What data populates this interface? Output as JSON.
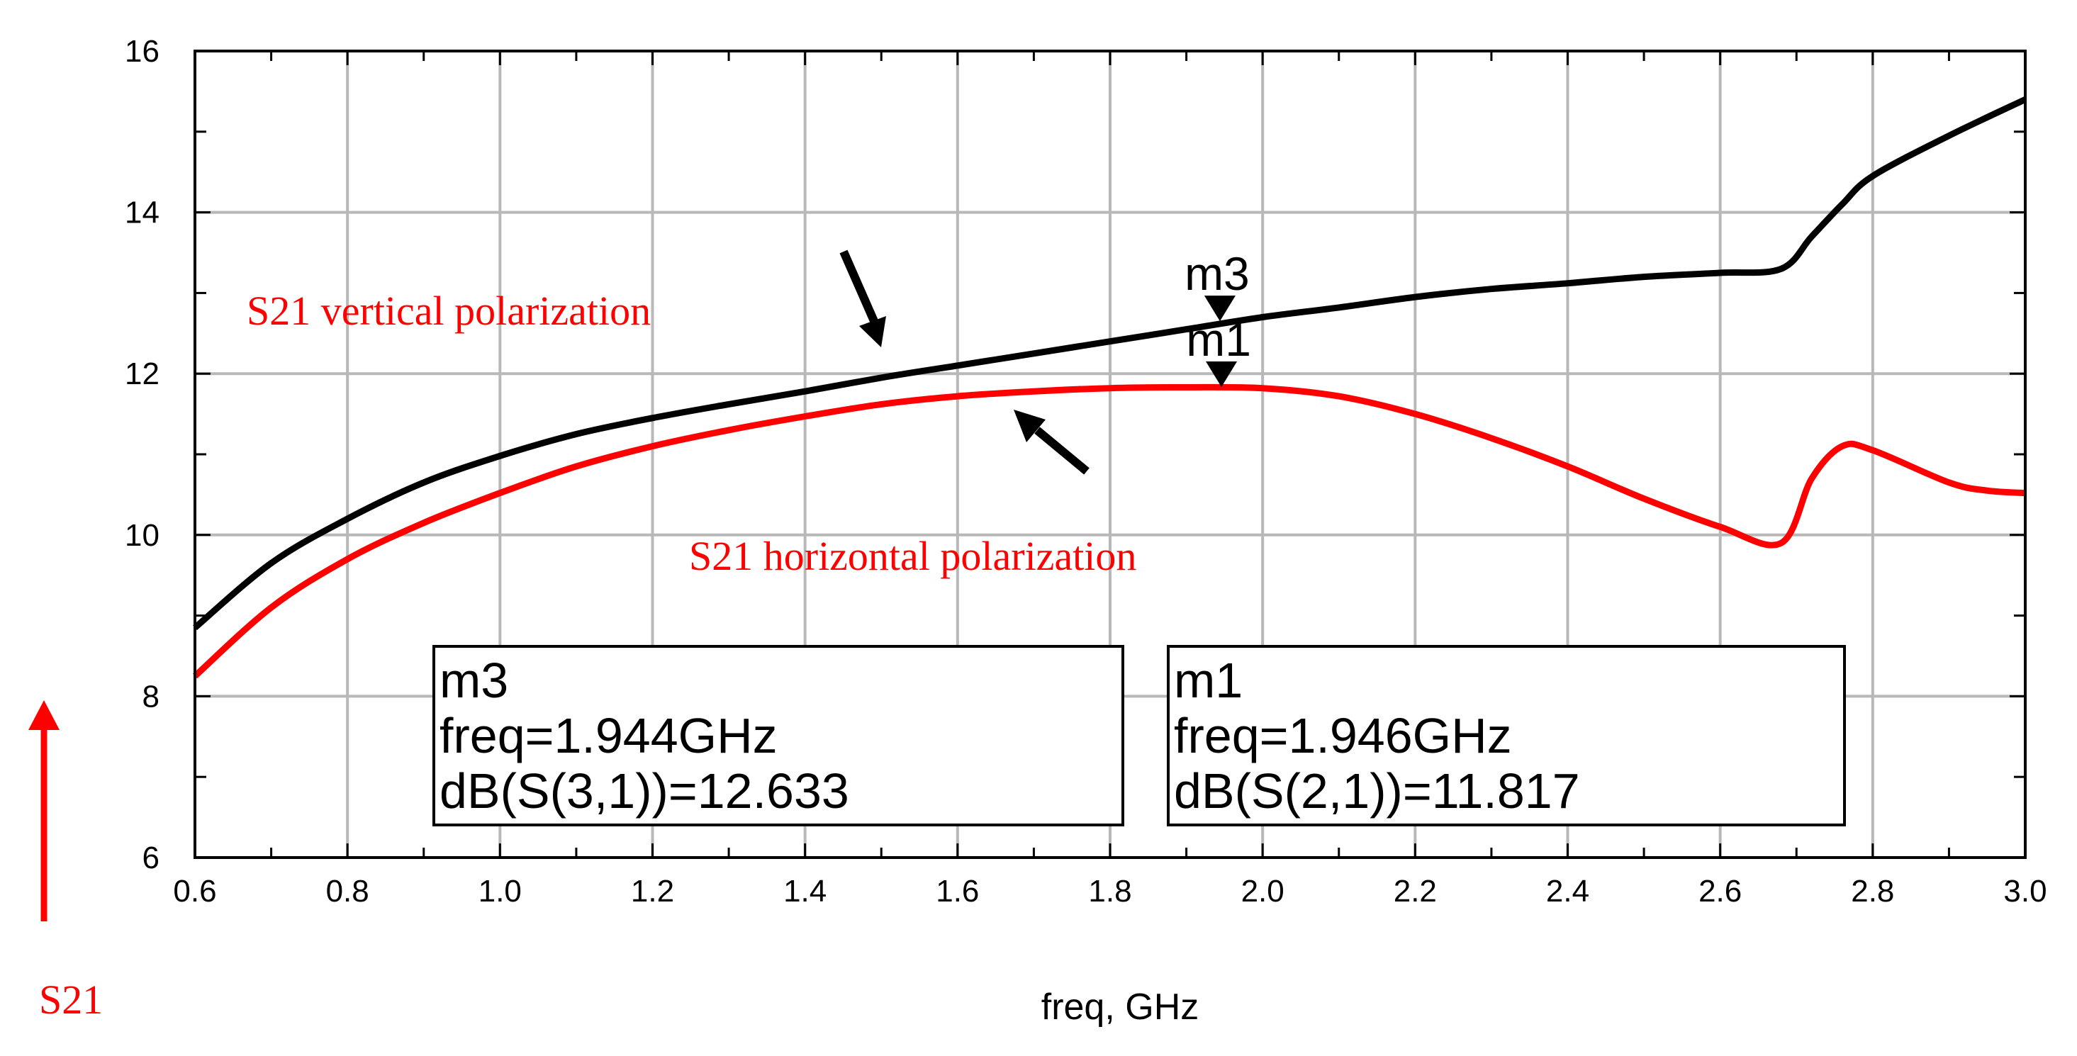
{
  "chart_data": {
    "type": "line",
    "title": "",
    "xlabel": "freq, GHz",
    "ylabel": "S21",
    "xlim": [
      0.6,
      3.0
    ],
    "ylim": [
      6,
      16
    ],
    "grid": true,
    "x_ticks": [
      "0.6",
      "0.8",
      "1.0",
      "1.2",
      "1.4",
      "1.6",
      "1.8",
      "2.0",
      "2.2",
      "2.4",
      "2.6",
      "2.8",
      "3.0"
    ],
    "y_ticks": [
      "6",
      "8",
      "10",
      "12",
      "14",
      "16"
    ],
    "series": [
      {
        "name": "dB(S(3,1))",
        "color": "#000000",
        "x": [
          0.6,
          0.7,
          0.8,
          0.9,
          1.0,
          1.1,
          1.2,
          1.3,
          1.4,
          1.5,
          1.6,
          1.7,
          1.8,
          1.9,
          2.0,
          2.1,
          2.2,
          2.3,
          2.4,
          2.5,
          2.6,
          2.68,
          2.72,
          2.76,
          2.8,
          2.9,
          3.0
        ],
        "y": [
          8.85,
          9.65,
          10.2,
          10.65,
          10.98,
          11.25,
          11.45,
          11.62,
          11.78,
          11.95,
          12.1,
          12.25,
          12.4,
          12.55,
          12.7,
          12.82,
          12.95,
          13.05,
          13.12,
          13.2,
          13.25,
          13.3,
          13.7,
          14.1,
          14.45,
          14.95,
          15.4
        ]
      },
      {
        "name": "dB(S(2,1))",
        "color": "#ff0000",
        "x": [
          0.6,
          0.7,
          0.8,
          0.9,
          1.0,
          1.1,
          1.2,
          1.3,
          1.4,
          1.5,
          1.6,
          1.7,
          1.8,
          1.9,
          2.0,
          2.1,
          2.2,
          2.3,
          2.4,
          2.5,
          2.6,
          2.68,
          2.72,
          2.76,
          2.8,
          2.9,
          2.95,
          3.0
        ],
        "y": [
          8.25,
          9.1,
          9.7,
          10.15,
          10.52,
          10.85,
          11.1,
          11.3,
          11.47,
          11.62,
          11.72,
          11.78,
          11.82,
          11.83,
          11.82,
          11.72,
          11.5,
          11.2,
          10.85,
          10.45,
          10.1,
          9.9,
          10.7,
          11.1,
          11.05,
          10.65,
          10.55,
          10.52
        ]
      }
    ],
    "markers": [
      {
        "name": "m3",
        "freq_ghz": 1.944,
        "value": 12.633,
        "color": "#000000",
        "lines": [
          "m3",
          "freq=1.944GHz",
          "dB(S(3,1))=12.633"
        ]
      },
      {
        "name": "m1",
        "freq_ghz": 1.946,
        "value": 11.817,
        "color": "#000000",
        "lines": [
          "m1",
          "freq=1.946GHz",
          "dB(S(2,1))=11.817"
        ]
      }
    ],
    "annotations": [
      {
        "text": "S21 vertical polarization",
        "color": "#ff0000"
      },
      {
        "text": "S21 horizontal polarization",
        "color": "#ff0000"
      }
    ]
  }
}
